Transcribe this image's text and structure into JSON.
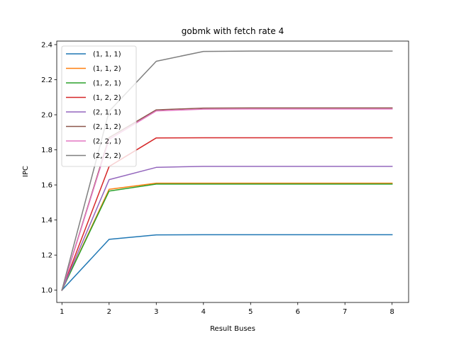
{
  "chart_data": {
    "type": "line",
    "title": "gobmk with fetch rate 4",
    "xlabel": "Result Buses",
    "ylabel": "IPC",
    "x": [
      1,
      2,
      3,
      4,
      5,
      6,
      7,
      8
    ],
    "xlim": [
      0.89,
      8.35
    ],
    "ylim": [
      0.93,
      2.42
    ],
    "xticks": [
      1,
      2,
      3,
      4,
      5,
      6,
      7,
      8
    ],
    "yticks": [
      1.0,
      1.2,
      1.4,
      1.6,
      1.8,
      2.0,
      2.2,
      2.4
    ],
    "grid": false,
    "legend_position": "top-left",
    "series": [
      {
        "name": "(1, 1, 1)",
        "color": "#1f77b4",
        "values": [
          1.0,
          1.29,
          1.315,
          1.316,
          1.316,
          1.316,
          1.316,
          1.316
        ]
      },
      {
        "name": "(1, 1, 2)",
        "color": "#ff7f0e",
        "values": [
          1.0,
          1.575,
          1.61,
          1.61,
          1.61,
          1.61,
          1.61,
          1.61
        ]
      },
      {
        "name": "(1, 2, 1)",
        "color": "#2ca02c",
        "values": [
          1.0,
          1.565,
          1.605,
          1.605,
          1.605,
          1.605,
          1.605,
          1.605
        ]
      },
      {
        "name": "(1, 2, 2)",
        "color": "#d62728",
        "values": [
          1.0,
          1.705,
          1.868,
          1.869,
          1.869,
          1.869,
          1.869,
          1.869
        ]
      },
      {
        "name": "(2, 1, 1)",
        "color": "#9467bd",
        "values": [
          1.0,
          1.63,
          1.7,
          1.706,
          1.706,
          1.706,
          1.706,
          1.706
        ]
      },
      {
        "name": "(2, 1, 2)",
        "color": "#8c564b",
        "values": [
          1.0,
          1.87,
          2.028,
          2.038,
          2.039,
          2.039,
          2.039,
          2.039
        ]
      },
      {
        "name": "(2, 2, 1)",
        "color": "#e377c2",
        "values": [
          1.0,
          1.86,
          2.022,
          2.032,
          2.033,
          2.033,
          2.033,
          2.033
        ]
      },
      {
        "name": "(2, 2, 2)",
        "color": "#7f7f7f",
        "values": [
          1.0,
          2.02,
          2.305,
          2.361,
          2.363,
          2.363,
          2.363,
          2.363
        ]
      }
    ]
  }
}
